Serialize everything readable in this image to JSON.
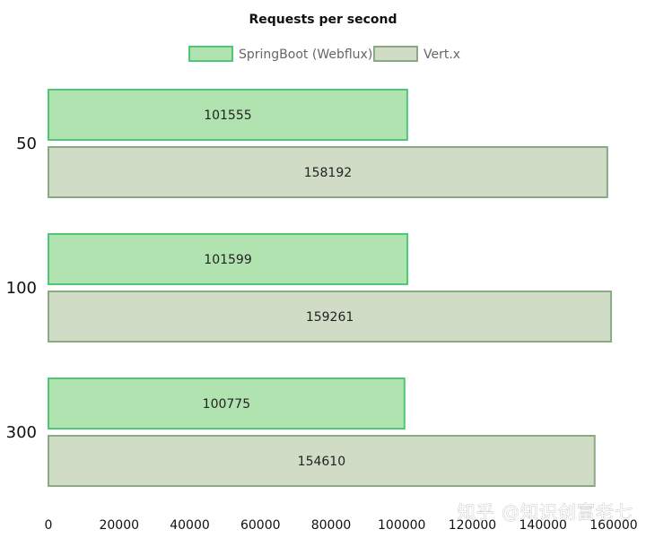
{
  "chart_data": {
    "type": "bar",
    "orientation": "horizontal",
    "title": "Requests per second",
    "categories": [
      "50",
      "100",
      "300"
    ],
    "series": [
      {
        "name": "SpringBoot (Webflux)",
        "values": [
          101555,
          101599,
          100775
        ],
        "fill": "#b1e3b0",
        "stroke": "#4ec876"
      },
      {
        "name": "Vert.x",
        "values": [
          158192,
          159261,
          154610
        ],
        "fill": "#d0dcc6",
        "stroke": "#8aaa82"
      }
    ],
    "xlim": [
      0,
      160000
    ],
    "xticks": [
      0,
      20000,
      40000,
      60000,
      80000,
      100000,
      120000,
      140000,
      160000
    ],
    "xlabel": "",
    "ylabel": "",
    "grid": false,
    "legend_position": "top",
    "data_labels": true
  },
  "watermark": {
    "text": "知乎 @知识创富老七"
  }
}
